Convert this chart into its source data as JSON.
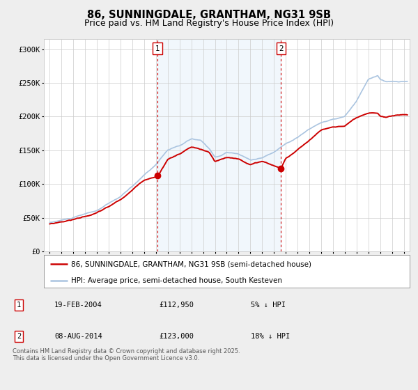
{
  "title": "86, SUNNINGDALE, GRANTHAM, NG31 9SB",
  "subtitle": "Price paid vs. HM Land Registry's House Price Index (HPI)",
  "ylabel_ticks": [
    "£0",
    "£50K",
    "£100K",
    "£150K",
    "£200K",
    "£250K",
    "£300K"
  ],
  "ytick_values": [
    0,
    50000,
    100000,
    150000,
    200000,
    250000,
    300000
  ],
  "ylim": [
    0,
    315000
  ],
  "xlim_start": 1994.5,
  "xlim_end": 2025.5,
  "hpi_color": "#aac4e0",
  "price_color": "#cc0000",
  "marker_color": "#cc0000",
  "vline_color": "#cc0000",
  "shade_color": "#d8eaf8",
  "sale1_date": 2004.13,
  "sale1_price": 112950,
  "sale2_date": 2014.6,
  "sale2_price": 123000,
  "legend1": "86, SUNNINGDALE, GRANTHAM, NG31 9SB (semi-detached house)",
  "legend2": "HPI: Average price, semi-detached house, South Kesteven",
  "note1_label": "1",
  "note1_date": "19-FEB-2004",
  "note1_price": "£112,950",
  "note1_pct": "5% ↓ HPI",
  "note2_label": "2",
  "note2_date": "08-AUG-2014",
  "note2_price": "£123,000",
  "note2_pct": "18% ↓ HPI",
  "copyright": "Contains HM Land Registry data © Crown copyright and database right 2025.\nThis data is licensed under the Open Government Licence v3.0.",
  "background_color": "#eeeeee",
  "plot_bg_color": "#ffffff",
  "grid_color": "#cccccc",
  "title_fontsize": 10.5,
  "subtitle_fontsize": 9,
  "tick_fontsize": 7.5,
  "legend_fontsize": 7.5,
  "note_fontsize": 7.5,
  "copyright_fontsize": 6
}
